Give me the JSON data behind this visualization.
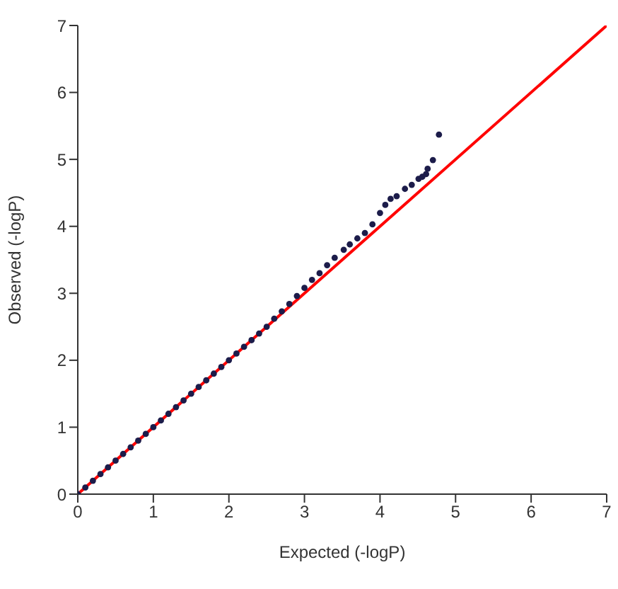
{
  "chart_data": {
    "type": "scatter",
    "xlabel": "Expected (-logP)",
    "ylabel": "Observed (-logP)",
    "xlim": [
      0,
      7
    ],
    "ylim": [
      0,
      7
    ],
    "xticks": [
      0,
      1,
      2,
      3,
      4,
      5,
      6,
      7
    ],
    "yticks": [
      0,
      1,
      2,
      3,
      4,
      5,
      6,
      7
    ],
    "series": [
      {
        "color": "#1c1c4a",
        "marker": "circle",
        "x": [
          0.0,
          0.1,
          0.2,
          0.3,
          0.4,
          0.5,
          0.6,
          0.7,
          0.8,
          0.9,
          1.0,
          1.1,
          1.2,
          1.3,
          1.4,
          1.5,
          1.6,
          1.7,
          1.8,
          1.9,
          2.0,
          2.1,
          2.2,
          2.3,
          2.4,
          2.5,
          2.6,
          2.7,
          2.8,
          2.9,
          3.0,
          3.1,
          3.2,
          3.3,
          3.4,
          3.52,
          3.6,
          3.7,
          3.8,
          3.9,
          4.0,
          4.07,
          4.14,
          4.22,
          4.33,
          4.42,
          4.51,
          4.56,
          4.61,
          4.63,
          4.7,
          4.78
        ],
        "values": [
          0.0,
          0.1,
          0.2,
          0.3,
          0.4,
          0.5,
          0.6,
          0.7,
          0.8,
          0.9,
          1.0,
          1.1,
          1.2,
          1.3,
          1.4,
          1.5,
          1.6,
          1.7,
          1.8,
          1.9,
          2.0,
          2.1,
          2.2,
          2.3,
          2.4,
          2.5,
          2.62,
          2.73,
          2.84,
          2.96,
          3.08,
          3.2,
          3.3,
          3.42,
          3.53,
          3.65,
          3.73,
          3.82,
          3.9,
          4.03,
          4.2,
          4.32,
          4.41,
          4.45,
          4.56,
          4.62,
          4.71,
          4.74,
          4.78,
          4.86,
          4.99,
          5.37
        ]
      },
      {
        "type": "line",
        "marker": "none",
        "color": "#ff0000",
        "x": [
          0,
          7
        ],
        "values": [
          0,
          7
        ]
      }
    ]
  }
}
